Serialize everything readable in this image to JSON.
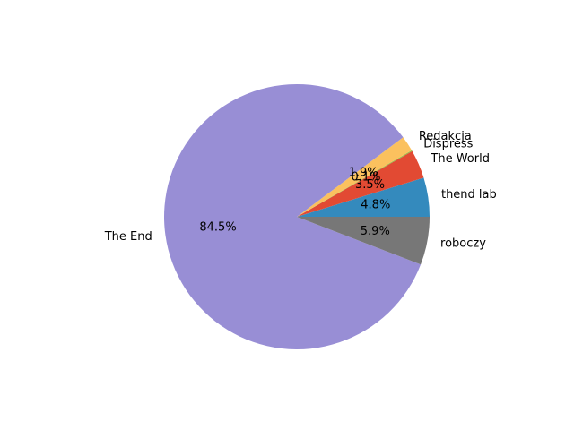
{
  "chart_data": {
    "type": "pie",
    "title": "",
    "start_angle_deg": 0,
    "direction": "counterclockwise",
    "legend": "none",
    "slices": [
      {
        "label": "thend lab",
        "pct_text": "4.8%",
        "value": 4.8,
        "color": "#348ABD"
      },
      {
        "label": "The World",
        "pct_text": "3.5%",
        "value": 3.5,
        "color": "#E24A33"
      },
      {
        "label": "Dispress",
        "pct_text": "0.1%",
        "value": 0.1,
        "color": "#8EBA42"
      },
      {
        "label": "Redakcja",
        "pct_text": "1.9%",
        "value": 1.9,
        "color": "#FBC15E"
      },
      {
        "label": "The End",
        "pct_text": "84.5%",
        "value": 84.5,
        "color": "#988ED5"
      },
      {
        "label": "roboczy",
        "pct_text": "5.9%",
        "value": 5.9,
        "color": "#777777"
      }
    ]
  }
}
